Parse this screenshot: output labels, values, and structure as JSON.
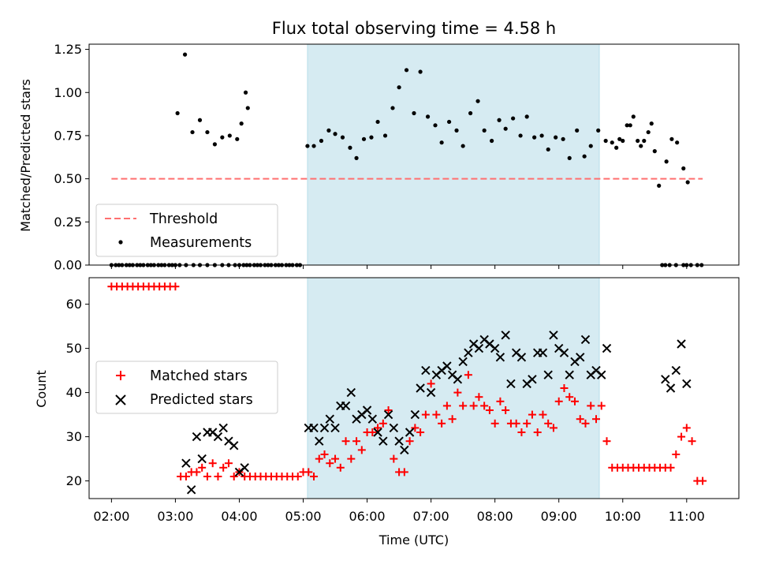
{
  "chart_data": [
    {
      "type": "scatter",
      "title": "Flux total observing time = 4.58 h",
      "xlabel": "",
      "ylabel": "Matched/Predicted stars",
      "xlim": [
        "01:39",
        "11:49"
      ],
      "ylim": [
        0,
        1.28
      ],
      "yticks": [
        "0.00",
        "0.25",
        "0.50",
        "0.75",
        "1.00",
        "1.25"
      ],
      "shaded_span": [
        "05:04",
        "09:38"
      ],
      "shaded_color": "#add8e6",
      "legend": {
        "position": "lower-left",
        "entries": [
          "Threshold",
          "Measurements"
        ]
      },
      "threshold": {
        "name": "Threshold",
        "y": 0.5,
        "x_start": "02:00",
        "x_end": "11:15",
        "color": "#ff7070",
        "style": "dashed"
      },
      "series": [
        {
          "name": "Measurements",
          "marker": "dot",
          "color": "#000000",
          "x": [
            "02:00",
            "02:04",
            "02:07",
            "02:10",
            "02:14",
            "02:17",
            "02:20",
            "02:24",
            "02:27",
            "02:30",
            "02:34",
            "02:37",
            "02:40",
            "02:44",
            "02:47",
            "02:50",
            "02:54",
            "02:57",
            "03:00",
            "03:04",
            "03:10",
            "03:17",
            "03:23",
            "03:30",
            "03:37",
            "03:44",
            "03:50",
            "03:56",
            "04:00",
            "04:04",
            "04:07",
            "04:10",
            "04:14",
            "04:17",
            "04:20",
            "04:24",
            "04:27",
            "04:30",
            "04:34",
            "04:37",
            "04:40",
            "04:44",
            "04:47",
            "04:50",
            "04:54",
            "04:57",
            "05:04",
            "05:10",
            "05:17",
            "05:24",
            "05:30",
            "05:37",
            "05:44",
            "05:50",
            "05:57",
            "06:04",
            "06:10",
            "06:17",
            "06:24",
            "06:30",
            "06:37",
            "06:44",
            "06:50",
            "06:57",
            "07:04",
            "07:10",
            "07:17",
            "07:24",
            "07:30",
            "07:37",
            "07:44",
            "07:50",
            "07:57",
            "08:04",
            "08:10",
            "08:17",
            "08:24",
            "08:30",
            "08:37",
            "08:44",
            "08:50",
            "08:57",
            "09:04",
            "09:10",
            "09:17",
            "09:24",
            "09:30",
            "09:37",
            "09:44",
            "09:50",
            "09:54",
            "09:57",
            "10:00",
            "10:04",
            "10:07",
            "10:10",
            "10:14",
            "10:17",
            "10:20",
            "10:24",
            "10:27",
            "10:30",
            "10:34",
            "10:37",
            "10:40",
            "10:44",
            "10:50",
            "10:57",
            "11:00",
            "11:04",
            "11:10",
            "11:14"
          ],
          "y": [
            0,
            0,
            0,
            0,
            0,
            0,
            0,
            0,
            0,
            0,
            0,
            0,
            0,
            0,
            0,
            0,
            0,
            0,
            0,
            0,
            0,
            0,
            0,
            0,
            0,
            0,
            0,
            0,
            0,
            0,
            0,
            0,
            0,
            0,
            0,
            0,
            0,
            0,
            0,
            0,
            0,
            0,
            0,
            0,
            0,
            0,
            0.69,
            0.69,
            0.72,
            0.78,
            0.76,
            0.74,
            0.68,
            0.62,
            0.73,
            0.74,
            0.83,
            0.75,
            0.91,
            1.03,
            1.13,
            0.88,
            1.12,
            0.86,
            0.81,
            0.71,
            0.83,
            0.78,
            0.69,
            0.88,
            0.95,
            0.78,
            0.72,
            0.84,
            0.79,
            0.85,
            0.75,
            0.86,
            0.74,
            0.75,
            0.67,
            0.74,
            0.73,
            0.62,
            0.78,
            0.63,
            0.69,
            0.78,
            0.72,
            0.71,
            0.68,
            0.73,
            0.72,
            0.81,
            0.81,
            0.86,
            0.72,
            0.69,
            0.72,
            0.77,
            0.82,
            0.66,
            0.46,
            0,
            0,
            0,
            0,
            0,
            0,
            0,
            0,
            0
          ]
        }
      ],
      "extra_points": {
        "x": [
          "03:02",
          "03:09",
          "03:16",
          "03:23",
          "03:30",
          "03:37",
          "03:44",
          "03:51",
          "03:58",
          "04:02",
          "04:06",
          "10:41",
          "10:46",
          "10:51",
          "10:57",
          "11:01"
        ],
        "y": [
          0.88,
          1.22,
          0.77,
          0.84,
          0.77,
          0.7,
          0.74,
          0.75,
          0.73,
          0.82,
          1.0,
          0.6,
          0.73,
          0.71,
          0.56,
          0.48
        ],
        "secondary_x": [
          "04:08"
        ],
        "secondary_y": [
          0.91
        ]
      }
    },
    {
      "type": "scatter",
      "xlabel": "Time (UTC)",
      "ylabel": "Count",
      "xlim": [
        "01:39",
        "11:49"
      ],
      "ylim": [
        16,
        66
      ],
      "yticks": [
        "20",
        "30",
        "40",
        "50",
        "60"
      ],
      "xticks": [
        "02:00",
        "03:00",
        "04:00",
        "05:00",
        "06:00",
        "07:00",
        "08:00",
        "09:00",
        "10:00",
        "11:00"
      ],
      "shaded_span": [
        "05:04",
        "09:38"
      ],
      "shaded_color": "#add8e6",
      "legend": {
        "position": "center-left",
        "entries": [
          "Matched stars",
          "Predicted stars"
        ]
      },
      "series": [
        {
          "name": "Matched stars",
          "marker": "plus",
          "color": "#ff0000",
          "x": [
            "02:00",
            "02:05",
            "02:10",
            "02:15",
            "02:20",
            "02:25",
            "02:30",
            "02:35",
            "02:40",
            "02:45",
            "02:50",
            "02:55",
            "03:00",
            "03:05",
            "03:10",
            "03:15",
            "03:20",
            "03:25",
            "03:30",
            "03:35",
            "03:40",
            "03:45",
            "03:50",
            "03:55",
            "04:00",
            "04:05",
            "04:10",
            "04:15",
            "04:20",
            "04:25",
            "04:30",
            "04:35",
            "04:40",
            "04:45",
            "04:50",
            "04:55",
            "05:00",
            "05:05",
            "05:10",
            "05:15",
            "05:20",
            "05:25",
            "05:30",
            "05:35",
            "05:40",
            "05:45",
            "05:50",
            "05:55",
            "06:00",
            "06:05",
            "06:10",
            "06:15",
            "06:20",
            "06:25",
            "06:30",
            "06:35",
            "06:40",
            "06:45",
            "06:50",
            "06:55",
            "07:00",
            "07:05",
            "07:10",
            "07:15",
            "07:20",
            "07:25",
            "07:30",
            "07:35",
            "07:40",
            "07:45",
            "07:50",
            "07:55",
            "08:00",
            "08:05",
            "08:10",
            "08:15",
            "08:20",
            "08:25",
            "08:30",
            "08:35",
            "08:40",
            "08:45",
            "08:50",
            "08:55",
            "09:00",
            "09:05",
            "09:10",
            "09:15",
            "09:20",
            "09:25",
            "09:30",
            "09:35",
            "09:40",
            "09:45",
            "09:50",
            "09:55",
            "10:00",
            "10:05",
            "10:10",
            "10:15",
            "10:20",
            "10:25",
            "10:30",
            "10:35",
            "10:40",
            "10:45",
            "10:50",
            "10:55",
            "11:00",
            "11:05",
            "11:10",
            "11:15"
          ],
          "y": [
            64,
            64,
            64,
            64,
            64,
            64,
            64,
            64,
            64,
            64,
            64,
            64,
            64,
            21,
            21,
            22,
            22,
            23,
            21,
            24,
            21,
            23,
            24,
            21,
            22,
            21,
            21,
            21,
            21,
            21,
            21,
            21,
            21,
            21,
            21,
            21,
            22,
            22,
            21,
            25,
            26,
            24,
            25,
            23,
            29,
            25,
            29,
            27,
            31,
            31,
            32,
            33,
            36,
            25,
            22,
            22,
            29,
            32,
            31,
            35,
            42,
            35,
            33,
            37,
            34,
            40,
            37,
            44,
            37,
            39,
            37,
            36,
            33,
            38,
            36,
            33,
            33,
            31,
            33,
            35,
            31,
            35,
            33,
            32,
            38,
            41,
            39,
            38,
            34,
            33,
            37,
            34,
            37,
            29,
            23,
            23,
            23,
            23,
            23,
            23,
            23,
            23,
            23,
            23,
            23,
            23,
            26,
            30,
            32,
            29,
            20,
            20
          ]
        },
        {
          "name": "Predicted stars",
          "marker": "x",
          "color": "#000000",
          "x": [
            "03:10",
            "03:15",
            "03:20",
            "03:25",
            "03:30",
            "03:35",
            "03:40",
            "03:45",
            "03:50",
            "03:55",
            "04:00",
            "04:05",
            "05:05",
            "05:10",
            "05:15",
            "05:20",
            "05:25",
            "05:30",
            "05:35",
            "05:40",
            "05:45",
            "05:50",
            "05:55",
            "06:00",
            "06:05",
            "06:10",
            "06:15",
            "06:20",
            "06:25",
            "06:30",
            "06:35",
            "06:40",
            "06:45",
            "06:50",
            "06:55",
            "07:00",
            "07:05",
            "07:10",
            "07:15",
            "07:20",
            "07:25",
            "07:30",
            "07:35",
            "07:40",
            "07:45",
            "07:50",
            "07:55",
            "08:00",
            "08:05",
            "08:10",
            "08:15",
            "08:20",
            "08:25",
            "08:30",
            "08:35",
            "08:40",
            "08:45",
            "08:50",
            "08:55",
            "09:00",
            "09:05",
            "09:10",
            "09:15",
            "09:20",
            "09:25",
            "09:30",
            "09:35",
            "09:40",
            "09:45",
            "10:40",
            "10:45",
            "10:50",
            "10:55",
            "11:00"
          ],
          "y": [
            24,
            18,
            30,
            25,
            31,
            31,
            30,
            32,
            29,
            28,
            22,
            23,
            32,
            32,
            29,
            32,
            34,
            32,
            37,
            37,
            40,
            34,
            35,
            36,
            34,
            31,
            29,
            35,
            32,
            29,
            27,
            31,
            35,
            41,
            45,
            40,
            44,
            45,
            46,
            44,
            43,
            47,
            49,
            51,
            50,
            52,
            51,
            50,
            48,
            53,
            42,
            49,
            48,
            42,
            43,
            49,
            49,
            44,
            53,
            50,
            49,
            44,
            47,
            48,
            52,
            44,
            45,
            44,
            50,
            43,
            41,
            45,
            51,
            42
          ]
        }
      ]
    }
  ]
}
